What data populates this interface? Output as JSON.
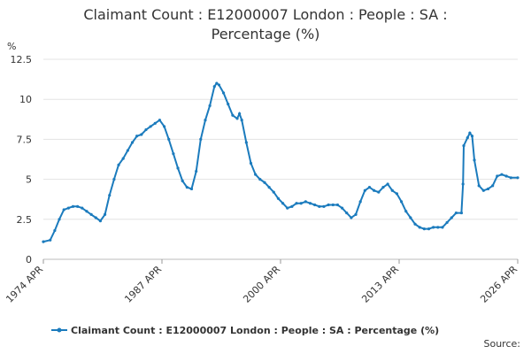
{
  "chart_data": {
    "type": "line",
    "title": "Claimant Count : E12000007 London : People : SA : Percentage (%)",
    "y_label": "%",
    "source": "Source:",
    "x": [
      "1974-04",
      "1975-01",
      "1975-07",
      "1976-01",
      "1976-07",
      "1977-01",
      "1977-07",
      "1978-01",
      "1978-07",
      "1979-01",
      "1979-07",
      "1980-01",
      "1980-07",
      "1981-01",
      "1981-07",
      "1982-01",
      "1982-07",
      "1983-01",
      "1983-07",
      "1984-01",
      "1984-07",
      "1985-01",
      "1985-07",
      "1986-01",
      "1986-07",
      "1987-01",
      "1987-07",
      "1988-01",
      "1988-07",
      "1989-01",
      "1989-07",
      "1990-01",
      "1990-07",
      "1991-01",
      "1991-07",
      "1992-01",
      "1992-07",
      "1993-01",
      "1993-04",
      "1993-07",
      "1994-01",
      "1994-07",
      "1995-01",
      "1995-07",
      "1995-10",
      "1996-01",
      "1996-07",
      "1997-01",
      "1997-07",
      "1998-01",
      "1998-07",
      "1999-01",
      "1999-07",
      "2000-01",
      "2000-07",
      "2001-01",
      "2001-07",
      "2002-01",
      "2002-07",
      "2003-01",
      "2003-07",
      "2004-01",
      "2004-07",
      "2005-01",
      "2005-07",
      "2006-01",
      "2006-07",
      "2007-01",
      "2007-07",
      "2008-01",
      "2008-07",
      "2009-01",
      "2009-07",
      "2010-01",
      "2010-07",
      "2011-01",
      "2011-07",
      "2012-01",
      "2012-07",
      "2013-01",
      "2013-07",
      "2014-01",
      "2014-07",
      "2015-01",
      "2015-07",
      "2016-01",
      "2016-07",
      "2017-01",
      "2017-07",
      "2018-01",
      "2018-07",
      "2019-01",
      "2019-07",
      "2020-02",
      "2020-04",
      "2020-05",
      "2020-10",
      "2021-01",
      "2021-04",
      "2021-07",
      "2022-01",
      "2022-07",
      "2023-01",
      "2023-07",
      "2024-01",
      "2024-07",
      "2025-01",
      "2025-07",
      "2026-04"
    ],
    "series": [
      {
        "name": "Claimant Count : E12000007 London : People : SA : Percentage (%)",
        "color": "#1b7bbd",
        "values": [
          1.1,
          1.2,
          1.8,
          2.5,
          3.1,
          3.2,
          3.3,
          3.3,
          3.2,
          3.0,
          2.8,
          2.6,
          2.4,
          2.8,
          4.0,
          5.0,
          5.9,
          6.3,
          6.8,
          7.3,
          7.7,
          7.8,
          8.1,
          8.3,
          8.5,
          8.7,
          8.3,
          7.5,
          6.6,
          5.7,
          4.9,
          4.5,
          4.4,
          5.5,
          7.5,
          8.7,
          9.6,
          10.8,
          11.0,
          10.9,
          10.4,
          9.7,
          9.0,
          8.8,
          9.1,
          8.7,
          7.3,
          6.0,
          5.3,
          5.0,
          4.8,
          4.5,
          4.2,
          3.8,
          3.5,
          3.2,
          3.3,
          3.5,
          3.5,
          3.6,
          3.5,
          3.4,
          3.3,
          3.3,
          3.4,
          3.4,
          3.4,
          3.2,
          2.9,
          2.6,
          2.8,
          3.6,
          4.3,
          4.5,
          4.3,
          4.2,
          4.5,
          4.7,
          4.3,
          4.1,
          3.6,
          3.0,
          2.6,
          2.2,
          2.0,
          1.9,
          1.9,
          2.0,
          2.0,
          2.0,
          2.3,
          2.6,
          2.9,
          2.9,
          4.7,
          7.1,
          7.6,
          7.9,
          7.7,
          6.2,
          4.6,
          4.3,
          4.4,
          4.6,
          5.2,
          5.3,
          5.2,
          5.1,
          5.1
        ]
      }
    ],
    "xlim": [
      "1974-04",
      "2026-04"
    ],
    "xticks": [
      {
        "value": "1974-04",
        "label": "1974 APR"
      },
      {
        "value": "1987-04",
        "label": "1987 APR"
      },
      {
        "value": "2000-04",
        "label": "2000 APR"
      },
      {
        "value": "2013-04",
        "label": "2013 APR"
      },
      {
        "value": "2026-04",
        "label": "2026 APR"
      }
    ],
    "ylim": [
      0,
      12.5
    ],
    "yticks": [
      0,
      2.5,
      5,
      7.5,
      10,
      12.5
    ],
    "grid": true
  }
}
